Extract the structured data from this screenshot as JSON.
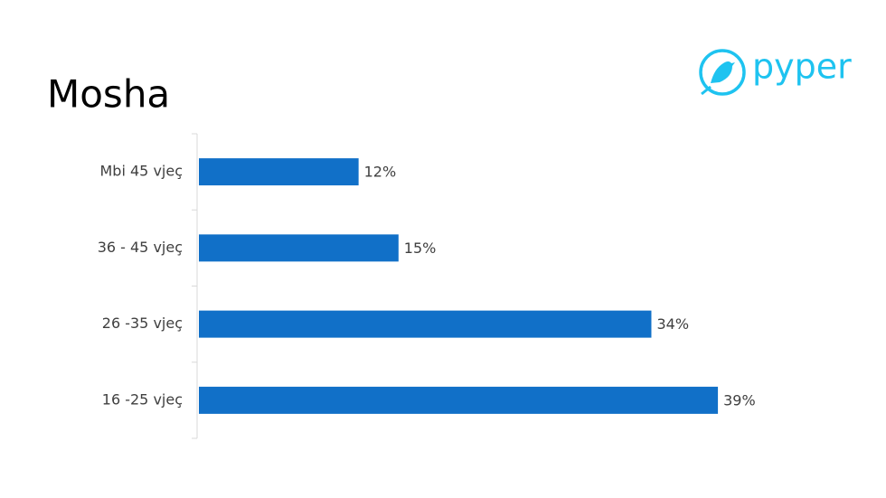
{
  "chart_data": {
    "type": "bar",
    "orientation": "horizontal",
    "title": "Mosha",
    "logo": "pyper",
    "categories": [
      "Mbi 45 vjeç",
      "36 - 45 vjeç",
      "26 -35 vjeç",
      "16 -25 vjeç"
    ],
    "values": [
      12,
      15,
      34,
      39
    ],
    "value_labels": [
      "12%",
      "15%",
      "34%",
      "39%"
    ],
    "color": "#1170c8"
  }
}
